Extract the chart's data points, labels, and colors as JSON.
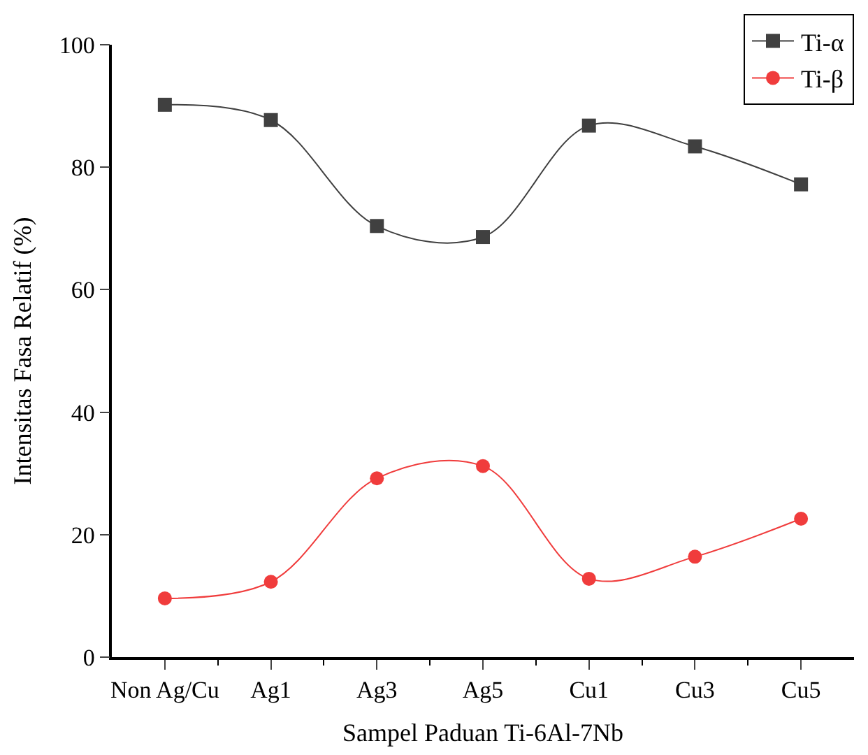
{
  "chart_data": {
    "type": "line",
    "xlabel": "Sampel Paduan Ti-6Al-7Nb",
    "ylabel": "Intensitas Fasa Relatif (%)",
    "categories": [
      "Non Ag/Cu",
      "Ag1",
      "Ag3",
      "Ag5",
      "Cu1",
      "Cu3",
      "Cu5"
    ],
    "series": [
      {
        "name": "Ti-α",
        "color": "#404040",
        "marker": "square",
        "values": [
          90.2,
          87.7,
          70.4,
          68.6,
          86.8,
          83.4,
          77.2
        ]
      },
      {
        "name": "Ti-β",
        "color": "#f03c3c",
        "marker": "circle",
        "values": [
          9.6,
          12.3,
          29.2,
          31.2,
          12.8,
          16.4,
          22.6
        ]
      }
    ],
    "ylim": [
      0,
      100
    ],
    "yticks": [
      0,
      20,
      40,
      60,
      80,
      100
    ],
    "legend": "top right",
    "line_style": "solid"
  }
}
